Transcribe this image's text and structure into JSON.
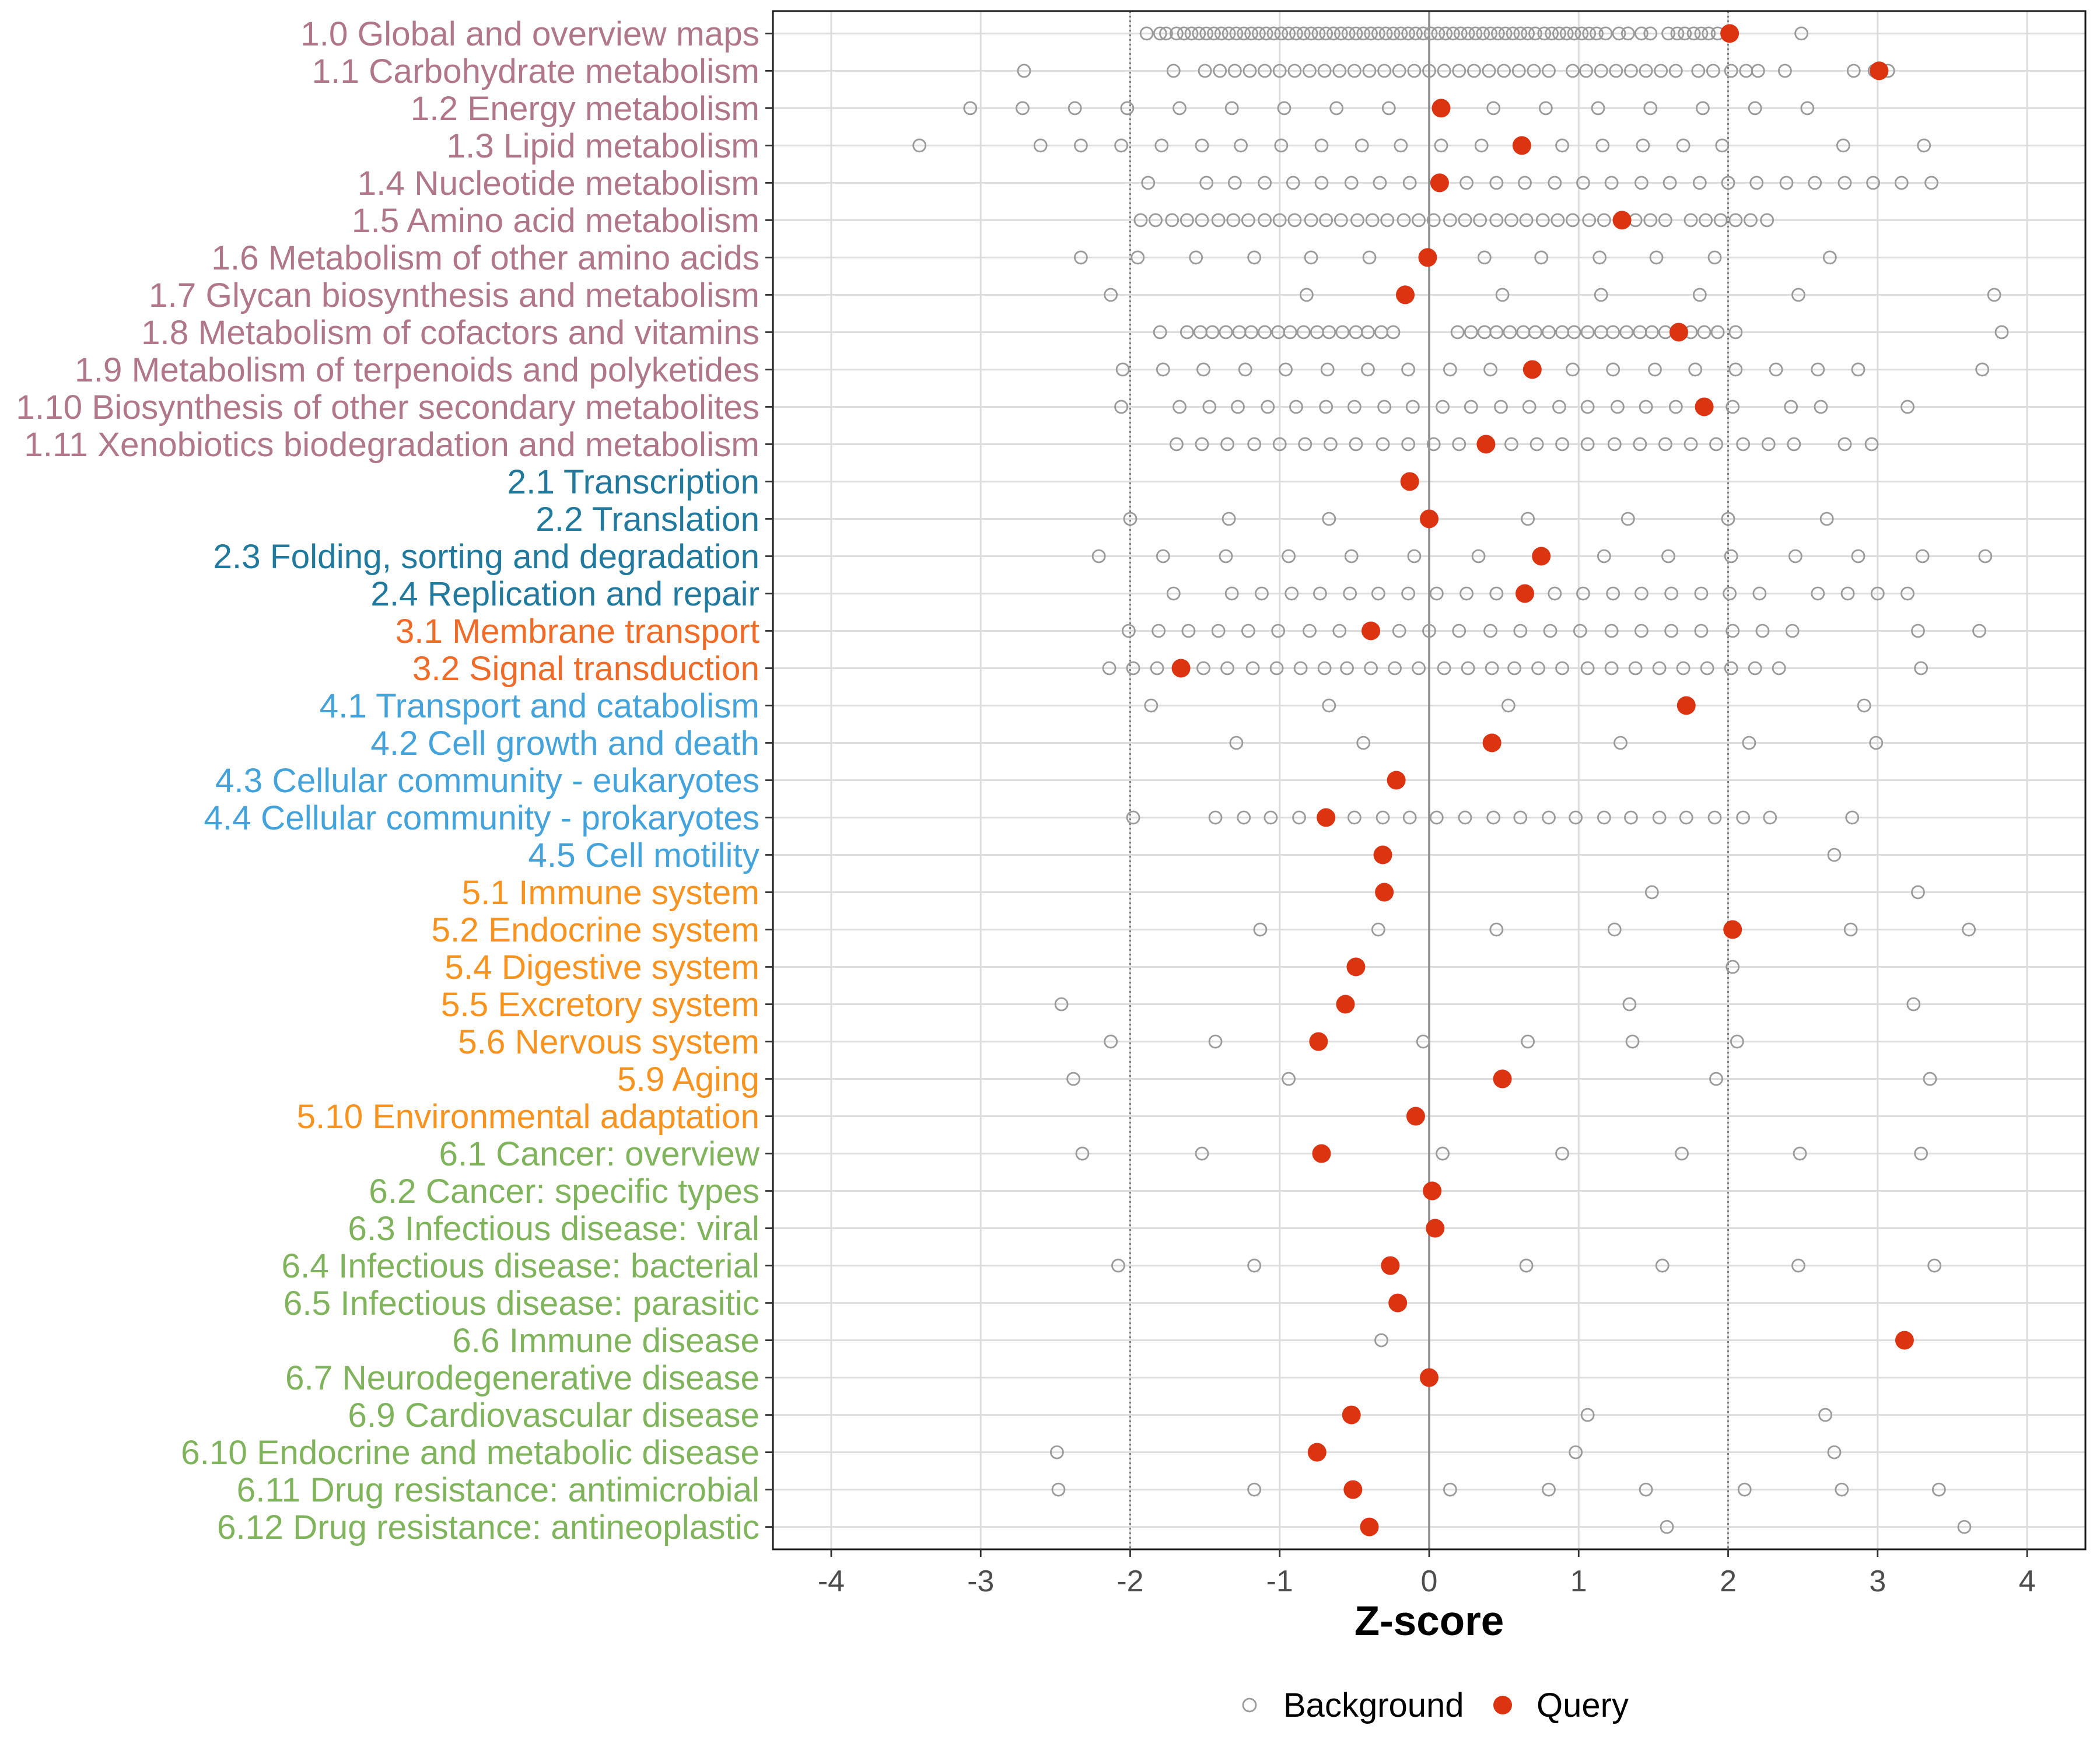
{
  "chart_data": {
    "type": "scatter",
    "xlabel": "Z-score",
    "ylabel": "",
    "xlim": [
      -4.39,
      4.39
    ],
    "xticks": [
      -4,
      -3,
      -2,
      -1,
      0,
      1,
      2,
      3,
      4
    ],
    "reference_lines": {
      "dotted": [
        -2,
        2
      ],
      "solid": [
        0
      ]
    },
    "series": [
      {
        "name": "Background",
        "color": "#9A9A9A"
      },
      {
        "name": "Query",
        "color": "#DC3310"
      }
    ],
    "legend": {
      "position": "bottom"
    },
    "label_colors": [
      "#B0778B",
      "#217A9D",
      "#F06A28",
      "#44A3DA",
      "#F7931E",
      "#80B45C"
    ],
    "categories": [
      {
        "label": "1.0 Global and overview maps",
        "group": 1,
        "query": 2.01,
        "background": [
          -1.89,
          -1.8,
          -1.76,
          -1.69,
          -1.64,
          -1.59,
          -1.54,
          -1.49,
          -1.44,
          -1.39,
          -1.34,
          -1.29,
          -1.24,
          -1.19,
          -1.14,
          -1.09,
          -1.04,
          -0.99,
          -0.94,
          -0.89,
          -0.84,
          -0.79,
          -0.74,
          -0.69,
          -0.64,
          -0.59,
          -0.54,
          -0.49,
          -0.44,
          -0.39,
          -0.34,
          -0.29,
          -0.24,
          -0.19,
          -0.14,
          -0.09,
          -0.04,
          0.01,
          0.06,
          0.11,
          0.16,
          0.21,
          0.26,
          0.31,
          0.36,
          0.41,
          0.46,
          0.51,
          0.56,
          0.61,
          0.66,
          0.71,
          0.77,
          0.82,
          0.87,
          0.92,
          0.97,
          1.02,
          1.07,
          1.12,
          1.18,
          1.27,
          1.33,
          1.42,
          1.48,
          1.6,
          1.66,
          1.71,
          1.77,
          1.82,
          1.87,
          1.93,
          2.01,
          2.49
        ]
      },
      {
        "label": "1.1 Carbohydrate metabolism",
        "group": 1,
        "query": 3.01,
        "background": [
          -2.71,
          -1.71,
          -1.5,
          -1.4,
          -1.3,
          -1.2,
          -1.1,
          -1.0,
          -0.9,
          -0.8,
          -0.7,
          -0.6,
          -0.5,
          -0.4,
          -0.3,
          -0.2,
          -0.1,
          0.0,
          0.1,
          0.2,
          0.3,
          0.4,
          0.5,
          0.6,
          0.7,
          0.8,
          0.96,
          1.05,
          1.15,
          1.25,
          1.35,
          1.45,
          1.55,
          1.65,
          1.8,
          1.9,
          2.02,
          2.12,
          2.2,
          2.38,
          2.84,
          2.98,
          3.07
        ]
      },
      {
        "label": "1.2 Energy metabolism",
        "group": 1,
        "query": 0.08,
        "background": [
          -3.07,
          -2.72,
          -2.37,
          -2.02,
          -1.67,
          -1.32,
          -0.97,
          -0.62,
          -0.27,
          0.08,
          0.43,
          0.78,
          1.13,
          1.48,
          1.83,
          2.18,
          2.53
        ]
      },
      {
        "label": "1.3 Lipid metabolism",
        "group": 1,
        "query": 0.62,
        "background": [
          -3.41,
          -2.6,
          -2.33,
          -2.06,
          -1.79,
          -1.52,
          -1.26,
          -0.99,
          -0.72,
          -0.45,
          -0.19,
          0.08,
          0.35,
          0.62,
          0.89,
          1.16,
          1.43,
          1.7,
          1.96,
          2.77,
          3.31
        ]
      },
      {
        "label": "1.4 Nucleotide metabolism",
        "group": 1,
        "query": 0.07,
        "background": [
          -1.88,
          -1.49,
          -1.3,
          -1.1,
          -0.91,
          -0.72,
          -0.52,
          -0.33,
          -0.13,
          0.07,
          0.25,
          0.45,
          0.64,
          0.84,
          1.03,
          1.22,
          1.42,
          1.61,
          1.81,
          2.0,
          2.19,
          2.39,
          2.58,
          2.78,
          2.97,
          3.16,
          3.36
        ]
      },
      {
        "label": "1.5 Amino acid metabolism",
        "group": 1,
        "query": 1.29,
        "background": [
          -1.93,
          -1.83,
          -1.72,
          -1.62,
          -1.52,
          -1.41,
          -1.31,
          -1.21,
          -1.1,
          -1.0,
          -0.9,
          -0.79,
          -0.69,
          -0.59,
          -0.48,
          -0.38,
          -0.28,
          -0.17,
          -0.07,
          0.03,
          0.14,
          0.24,
          0.34,
          0.45,
          0.55,
          0.65,
          0.76,
          0.86,
          0.96,
          1.07,
          1.17,
          1.29,
          1.38,
          1.48,
          1.58,
          1.75,
          1.85,
          1.95,
          2.05,
          2.15,
          2.26
        ]
      },
      {
        "label": "1.6 Metabolism of other amino acids",
        "group": 1,
        "query": -0.01,
        "background": [
          -2.33,
          -1.95,
          -1.56,
          -1.17,
          -0.79,
          -0.4,
          -0.01,
          0.37,
          0.75,
          1.14,
          1.52,
          1.91,
          2.68
        ]
      },
      {
        "label": "1.7 Glycan biosynthesis and metabolism",
        "group": 1,
        "query": -0.16,
        "background": [
          -2.13,
          -0.82,
          -0.16,
          0.49,
          1.15,
          1.81,
          2.47,
          3.78
        ]
      },
      {
        "label": "1.8 Metabolism of cofactors and vitamins",
        "group": 1,
        "query": 1.67,
        "background": [
          -1.8,
          -1.62,
          -1.53,
          -1.45,
          -1.36,
          -1.27,
          -1.19,
          -1.1,
          -1.01,
          -0.93,
          -0.84,
          -0.75,
          -0.67,
          -0.58,
          -0.49,
          -0.41,
          -0.32,
          -0.24,
          0.19,
          0.28,
          0.37,
          0.45,
          0.54,
          0.63,
          0.71,
          0.8,
          0.89,
          0.97,
          1.06,
          1.15,
          1.23,
          1.32,
          1.41,
          1.49,
          1.58,
          1.67,
          1.75,
          1.84,
          1.93,
          2.05,
          3.83
        ]
      },
      {
        "label": "1.9 Metabolism of terpenoids and polyketides",
        "group": 1,
        "query": 0.69,
        "background": [
          -2.05,
          -1.78,
          -1.51,
          -1.23,
          -0.96,
          -0.68,
          -0.41,
          -0.14,
          0.14,
          0.41,
          0.69,
          0.96,
          1.23,
          1.51,
          1.78,
          2.05,
          2.32,
          2.6,
          2.87,
          3.7
        ]
      },
      {
        "label": "1.10 Biosynthesis of other secondary metabolites",
        "group": 1,
        "query": 1.84,
        "background": [
          -2.06,
          -1.67,
          -1.47,
          -1.28,
          -1.08,
          -0.89,
          -0.69,
          -0.5,
          -0.3,
          -0.11,
          0.09,
          0.28,
          0.48,
          0.67,
          0.87,
          1.06,
          1.26,
          1.45,
          1.65,
          1.84,
          2.03,
          2.42,
          2.62,
          3.2
        ]
      },
      {
        "label": "1.11 Xenobiotics biodegradation and metabolism",
        "group": 1,
        "query": 0.38,
        "background": [
          -1.69,
          -1.52,
          -1.35,
          -1.17,
          -1.0,
          -0.83,
          -0.66,
          -0.49,
          -0.31,
          -0.14,
          0.03,
          0.2,
          0.38,
          0.55,
          0.72,
          0.89,
          1.06,
          1.24,
          1.41,
          1.58,
          1.75,
          1.92,
          2.1,
          2.27,
          2.44,
          2.78,
          2.96
        ]
      },
      {
        "label": "2.1 Transcription",
        "group": 2,
        "query": -0.13,
        "background": []
      },
      {
        "label": "2.2 Translation",
        "group": 2,
        "query": 0.0,
        "background": [
          -2.0,
          -1.34,
          -0.67,
          0.0,
          0.66,
          1.33,
          2.0,
          2.66
        ]
      },
      {
        "label": "2.3 Folding, sorting and degradation",
        "group": 2,
        "query": 0.75,
        "background": [
          -2.21,
          -1.78,
          -1.36,
          -0.94,
          -0.52,
          -0.1,
          0.33,
          0.75,
          1.17,
          1.6,
          2.02,
          2.45,
          2.87,
          3.3,
          3.72
        ]
      },
      {
        "label": "2.4 Replication and repair",
        "group": 2,
        "query": 0.64,
        "background": [
          -1.71,
          -1.32,
          -1.12,
          -0.92,
          -0.73,
          -0.53,
          -0.34,
          -0.14,
          0.05,
          0.25,
          0.45,
          0.64,
          0.84,
          1.03,
          1.23,
          1.42,
          1.62,
          1.82,
          2.01,
          2.21,
          2.6,
          2.8,
          3.0,
          3.2
        ]
      },
      {
        "label": "3.1 Membrane transport",
        "group": 3,
        "query": -0.39,
        "background": [
          -2.01,
          -1.81,
          -1.61,
          -1.41,
          -1.21,
          -1.01,
          -0.8,
          -0.6,
          -0.39,
          -0.2,
          0.0,
          0.2,
          0.41,
          0.61,
          0.81,
          1.01,
          1.22,
          1.42,
          1.62,
          1.82,
          2.03,
          2.23,
          2.43,
          3.27,
          3.68
        ]
      },
      {
        "label": "3.2 Signal transduction",
        "group": 3,
        "query": -1.66,
        "background": [
          -2.14,
          -1.98,
          -1.82,
          -1.66,
          -1.51,
          -1.35,
          -1.18,
          -1.02,
          -0.86,
          -0.7,
          -0.55,
          -0.39,
          -0.23,
          -0.07,
          0.1,
          0.26,
          0.42,
          0.57,
          0.73,
          0.89,
          1.06,
          1.22,
          1.38,
          1.54,
          1.7,
          1.86,
          2.02,
          2.18,
          2.34,
          3.29
        ]
      },
      {
        "label": "4.1 Transport and catabolism",
        "group": 4,
        "query": 1.72,
        "background": [
          -1.86,
          -0.67,
          0.53,
          1.72,
          2.91
        ]
      },
      {
        "label": "4.2 Cell growth and death",
        "group": 4,
        "query": 0.42,
        "background": [
          -1.29,
          -0.44,
          0.42,
          1.28,
          2.14,
          2.99
        ]
      },
      {
        "label": "4.3 Cellular community - eukaryotes",
        "group": 4,
        "query": -0.22,
        "background": []
      },
      {
        "label": "4.4 Cellular community - prokaryotes",
        "group": 4,
        "query": -0.69,
        "background": [
          -1.98,
          -1.43,
          -1.24,
          -1.06,
          -0.87,
          -0.69,
          -0.5,
          -0.31,
          -0.13,
          0.05,
          0.24,
          0.43,
          0.61,
          0.8,
          0.98,
          1.17,
          1.35,
          1.54,
          1.72,
          1.91,
          2.1,
          2.28,
          2.83
        ]
      },
      {
        "label": "4.5 Cell motility",
        "group": 4,
        "query": -0.31,
        "background": [
          -0.31,
          2.71
        ]
      },
      {
        "label": "5.1 Immune system",
        "group": 5,
        "query": -0.3,
        "background": [
          -0.3,
          1.49,
          3.27
        ]
      },
      {
        "label": "5.2 Endocrine system",
        "group": 5,
        "query": 2.03,
        "background": [
          -1.13,
          -0.34,
          0.45,
          1.24,
          2.03,
          2.82,
          3.61
        ]
      },
      {
        "label": "5.4 Digestive system",
        "group": 5,
        "query": -0.49,
        "background": [
          -0.49,
          2.03
        ]
      },
      {
        "label": "5.5 Excretory system",
        "group": 5,
        "query": -0.56,
        "background": [
          -2.46,
          -0.56,
          1.34,
          3.24
        ]
      },
      {
        "label": "5.6 Nervous system",
        "group": 5,
        "query": -0.74,
        "background": [
          -2.13,
          -1.43,
          -0.74,
          -0.04,
          0.66,
          1.36,
          2.06
        ]
      },
      {
        "label": "5.9 Aging",
        "group": 5,
        "query": 0.49,
        "background": [
          -2.38,
          -0.94,
          0.49,
          1.92,
          3.35
        ]
      },
      {
        "label": "5.10 Environmental adaptation",
        "group": 5,
        "query": -0.09,
        "background": []
      },
      {
        "label": "6.1 Cancer: overview",
        "group": 6,
        "query": -0.72,
        "background": [
          -2.32,
          -1.52,
          -0.72,
          0.09,
          0.89,
          1.69,
          2.48,
          3.29
        ]
      },
      {
        "label": "6.2 Cancer: specific types",
        "group": 6,
        "query": 0.02,
        "background": []
      },
      {
        "label": "6.3 Infectious disease: viral",
        "group": 6,
        "query": 0.04,
        "background": []
      },
      {
        "label": "6.4 Infectious disease: bacterial",
        "group": 6,
        "query": -0.26,
        "background": [
          -2.08,
          -1.17,
          -0.26,
          0.65,
          1.56,
          2.47,
          3.38
        ]
      },
      {
        "label": "6.5 Infectious disease: parasitic",
        "group": 6,
        "query": -0.21,
        "background": []
      },
      {
        "label": "6.6 Immune disease",
        "group": 6,
        "query": 3.18,
        "background": [
          -0.32,
          3.18
        ]
      },
      {
        "label": "6.7 Neurodegenerative disease",
        "group": 6,
        "query": 0.0,
        "background": []
      },
      {
        "label": "6.9 Cardiovascular disease",
        "group": 6,
        "query": -0.52,
        "background": [
          -0.52,
          1.06,
          2.65
        ]
      },
      {
        "label": "6.10 Endocrine and metabolic disease",
        "group": 6,
        "query": -0.75,
        "background": [
          -2.49,
          -0.75,
          0.98,
          2.71
        ]
      },
      {
        "label": "6.11 Drug resistance: antimicrobial",
        "group": 6,
        "query": -0.51,
        "background": [
          -2.48,
          -1.17,
          -0.51,
          0.14,
          0.8,
          1.45,
          2.11,
          2.76,
          3.41
        ]
      },
      {
        "label": "6.12 Drug resistance: antineoplastic",
        "group": 6,
        "query": -0.4,
        "background": [
          -0.4,
          1.59,
          3.58
        ]
      }
    ]
  }
}
